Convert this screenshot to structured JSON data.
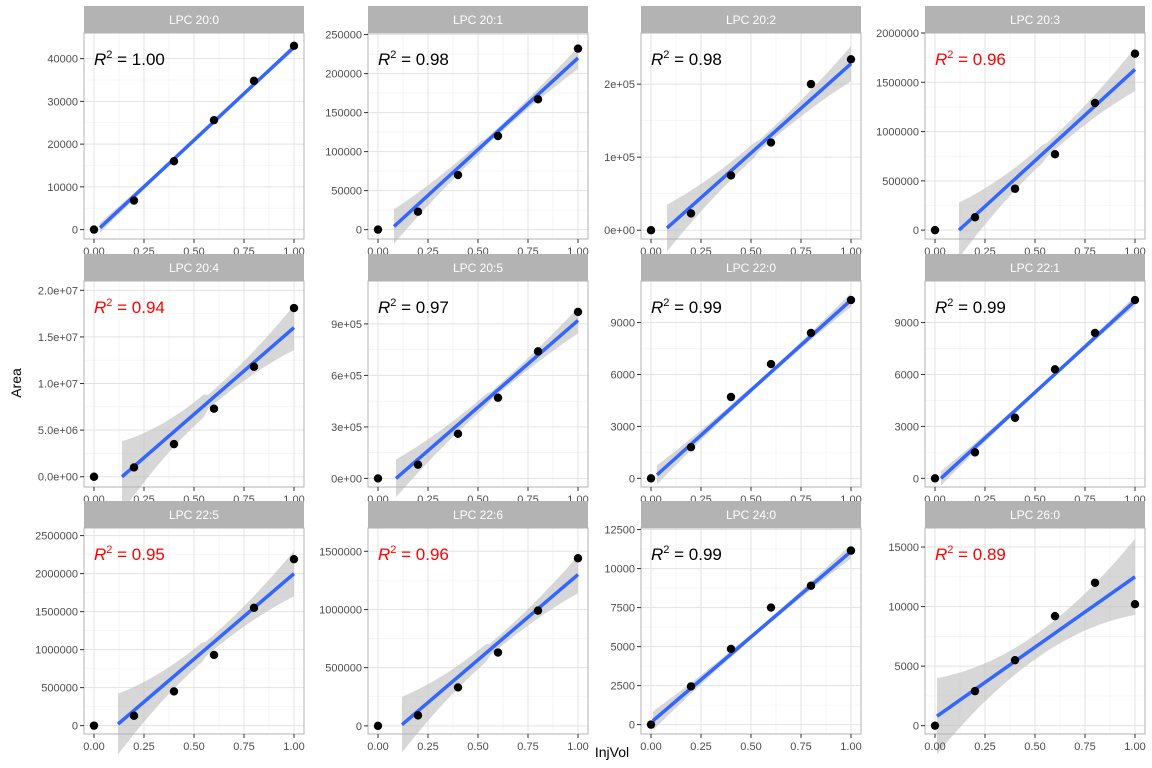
{
  "chart_data": {
    "type": "scatter",
    "xlabel": "InjVol",
    "ylabel": "Area",
    "layout": "facet grid 4 columns x 3 rows, free y scales",
    "grid": true,
    "theme_colors": {
      "strip_bg": "#b3b3b3",
      "strip_text": "#ffffff",
      "panel_border": "#b3b3b3",
      "grid": "#e3e3e3",
      "point": "#000000",
      "fit_line": "#3366ff",
      "ribbon": "#bdbdbd",
      "r2_good": "#000000",
      "r2_bad": "#ff0000"
    },
    "x_ticks": [
      0,
      0.25,
      0.5,
      0.75,
      1
    ],
    "x_tick_labels": [
      "0.00",
      "0.25",
      "0.50",
      "0.75",
      "1.00"
    ],
    "panels": [
      {
        "title": "LPC 20:0",
        "r2": "1.00",
        "r2_color": "#000000",
        "x": [
          0,
          0.2,
          0.4,
          0.6,
          0.8,
          1.0
        ],
        "y": [
          0,
          6800,
          16000,
          25600,
          34800,
          43000
        ],
        "fit_x": [
          0.03,
          1.0
        ],
        "fit": [
          430,
          42700
        ],
        "band": [
          1200,
          800
        ],
        "ylim": [
          -2200,
          46000
        ],
        "y_ticks": [
          0,
          10000,
          20000,
          30000,
          40000
        ],
        "y_tick_labels": [
          "0",
          "10000",
          "20000",
          "30000",
          "40000"
        ]
      },
      {
        "title": "LPC 20:1",
        "r2": "0.98",
        "r2_color": "#000000",
        "x": [
          0,
          0.2,
          0.4,
          0.6,
          0.8,
          1.0
        ],
        "y": [
          0,
          23000,
          70000,
          120000,
          167000,
          232000
        ],
        "fit_x": [
          0.08,
          1.0
        ],
        "fit": [
          4000,
          220000
        ],
        "band": [
          22000,
          14000
        ],
        "ylim": [
          -12000,
          252000
        ],
        "y_ticks": [
          0,
          50000,
          100000,
          150000,
          200000,
          250000
        ],
        "y_tick_labels": [
          "0",
          "50000",
          "100000",
          "150000",
          "200000",
          "250000"
        ]
      },
      {
        "title": "LPC 20:2",
        "r2": "0.98",
        "r2_color": "#000000",
        "x": [
          0,
          0.2,
          0.4,
          0.6,
          0.8,
          1.0
        ],
        "y": [
          0,
          23000,
          75000,
          120000,
          200000,
          234000
        ],
        "fit_x": [
          0.08,
          1.0
        ],
        "fit": [
          3000,
          228000
        ],
        "band": [
          32000,
          24000
        ],
        "ylim": [
          -12000,
          270000
        ],
        "y_ticks": [
          0,
          100000,
          200000
        ],
        "y_tick_labels": [
          "0e+00",
          "1e+05",
          "2e+05"
        ]
      },
      {
        "title": "LPC 20:3",
        "r2": "0.96",
        "r2_color": "#ff0000",
        "x": [
          0,
          0.2,
          0.4,
          0.6,
          0.8,
          1.0
        ],
        "y": [
          0,
          130000,
          420000,
          770000,
          1290000,
          1790000
        ],
        "fit_x": [
          0.12,
          1.0
        ],
        "fit": [
          0,
          1630000
        ],
        "band": [
          280000,
          220000
        ],
        "ylim": [
          -90000,
          2000000
        ],
        "y_ticks": [
          0,
          500000,
          1000000,
          1500000,
          2000000
        ],
        "y_tick_labels": [
          "0",
          "500000",
          "1000000",
          "1500000",
          "2000000"
        ]
      },
      {
        "title": "LPC 20:4",
        "r2": "0.94",
        "r2_color": "#ff0000",
        "x": [
          0,
          0.2,
          0.4,
          0.6,
          0.8,
          1.0
        ],
        "y": [
          0,
          1000000,
          3500000,
          7300000,
          11800000,
          18100000
        ],
        "fit_x": [
          0.14,
          1.0
        ],
        "fit": [
          0,
          16000000
        ],
        "band": [
          3800000,
          2400000
        ],
        "ylim": [
          -1100000,
          21000000
        ],
        "y_ticks": [
          0,
          5000000,
          10000000,
          15000000,
          20000000
        ],
        "y_tick_labels": [
          "0.0e+00",
          "5.0e+06",
          "1.0e+07",
          "1.5e+07",
          "2.0e+07"
        ]
      },
      {
        "title": "LPC 20:5",
        "r2": "0.97",
        "r2_color": "#000000",
        "x": [
          0,
          0.2,
          0.4,
          0.6,
          0.8,
          1.0
        ],
        "y": [
          0,
          80000,
          260000,
          470000,
          740000,
          970000
        ],
        "fit_x": [
          0.09,
          1.0
        ],
        "fit": [
          0,
          920000
        ],
        "band": [
          110000,
          75000
        ],
        "ylim": [
          -50000,
          1150000
        ],
        "y_ticks": [
          0,
          300000,
          600000,
          900000
        ],
        "y_tick_labels": [
          "0e+00",
          "3e+05",
          "6e+05",
          "9e+05"
        ]
      },
      {
        "title": "LPC 22:0",
        "r2": "0.99",
        "r2_color": "#000000",
        "x": [
          0,
          0.2,
          0.4,
          0.6,
          0.8,
          1.0
        ],
        "y": [
          0,
          1800,
          4700,
          6600,
          8400,
          10300
        ],
        "fit_x": [
          0.03,
          1.0
        ],
        "fit": [
          200,
          10300
        ],
        "band": [
          550,
          400
        ],
        "ylim": [
          -500,
          11400
        ],
        "y_ticks": [
          0,
          3000,
          6000,
          9000
        ],
        "y_tick_labels": [
          "0",
          "3000",
          "6000",
          "9000"
        ]
      },
      {
        "title": "LPC 22:1",
        "r2": "0.99",
        "r2_color": "#000000",
        "x": [
          0,
          0.2,
          0.4,
          0.6,
          0.8,
          1.0
        ],
        "y": [
          0,
          1500,
          3500,
          6300,
          8400,
          10300
        ],
        "fit_x": [
          0.03,
          1.0
        ],
        "fit": [
          0,
          10250
        ],
        "band": [
          420,
          300
        ],
        "ylim": [
          -500,
          11400
        ],
        "y_ticks": [
          0,
          3000,
          6000,
          9000
        ],
        "y_tick_labels": [
          "0",
          "3000",
          "6000",
          "9000"
        ]
      },
      {
        "title": "LPC 22:5",
        "r2": "0.95",
        "r2_color": "#ff0000",
        "x": [
          0,
          0.2,
          0.4,
          0.6,
          0.8,
          1.0
        ],
        "y": [
          0,
          130000,
          450000,
          930000,
          1550000,
          2190000
        ],
        "fit_x": [
          0.12,
          1.0
        ],
        "fit": [
          20000,
          2000000
        ],
        "band": [
          400000,
          300000
        ],
        "ylim": [
          -110000,
          2600000
        ],
        "y_ticks": [
          0,
          500000,
          1000000,
          1500000,
          2000000,
          2500000
        ],
        "y_tick_labels": [
          "0",
          "500000",
          "1000000",
          "1500000",
          "2000000",
          "2500000"
        ]
      },
      {
        "title": "LPC 22:6",
        "r2": "0.96",
        "r2_color": "#ff0000",
        "x": [
          0,
          0.2,
          0.4,
          0.6,
          0.8,
          1.0
        ],
        "y": [
          0,
          90000,
          330000,
          630000,
          990000,
          1440000
        ],
        "fit_x": [
          0.12,
          1.0
        ],
        "fit": [
          10000,
          1300000
        ],
        "band": [
          240000,
          160000
        ],
        "ylim": [
          -70000,
          1700000
        ],
        "y_ticks": [
          0,
          500000,
          1000000,
          1500000
        ],
        "y_tick_labels": [
          "0",
          "500000",
          "1000000",
          "1500000"
        ]
      },
      {
        "title": "LPC 24:0",
        "r2": "0.99",
        "r2_color": "#000000",
        "x": [
          0,
          0.2,
          0.4,
          0.6,
          0.8,
          1.0
        ],
        "y": [
          0,
          2450,
          4850,
          7500,
          8900,
          11150
        ],
        "fit_x": [
          0.01,
          1.0
        ],
        "fit": [
          250,
          11100
        ],
        "band": [
          600,
          450
        ],
        "ylim": [
          -600,
          12600
        ],
        "y_ticks": [
          0,
          2500,
          5000,
          7500,
          10000,
          12500
        ],
        "y_tick_labels": [
          "0",
          "2500",
          "5000",
          "7500",
          "10000",
          "12500"
        ]
      },
      {
        "title": "LPC 26:0",
        "r2": "0.89",
        "r2_color": "#ff0000",
        "x": [
          0,
          0.2,
          0.4,
          0.6,
          0.8,
          1.0
        ],
        "y": [
          0,
          2900,
          5500,
          9200,
          12000,
          10200
        ],
        "fit_x": [
          0.01,
          1.0
        ],
        "fit": [
          800,
          12500
        ],
        "band": [
          3200,
          3200
        ],
        "ylim": [
          -700,
          16600
        ],
        "y_ticks": [
          0,
          5000,
          10000,
          15000
        ],
        "y_tick_labels": [
          "0",
          "5000",
          "10000",
          "15000"
        ]
      }
    ]
  }
}
